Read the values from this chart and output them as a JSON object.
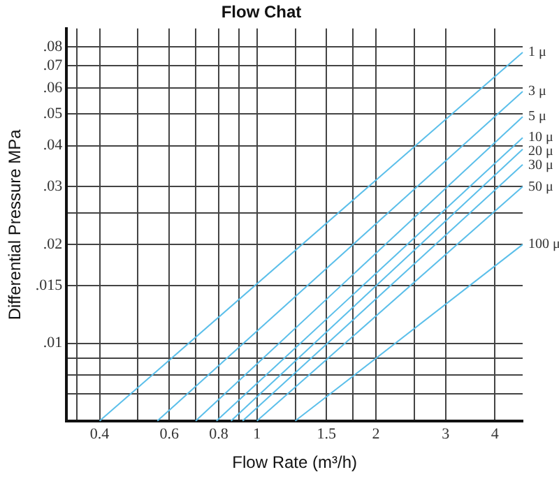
{
  "chart_data": {
    "type": "line",
    "title": "Flow Chat",
    "xlabel": "Flow Rate (m³/h)",
    "ylabel": "Differential Pressure MPa",
    "log": "xy",
    "grid": true,
    "legend": false,
    "marker": "none",
    "line_style": "solid",
    "xlim": [
      0.33,
      4.7
    ],
    "ylim": [
      0.0058,
      0.091
    ],
    "xticks": [
      {
        "value": 0.35,
        "label": null
      },
      0.4,
      {
        "value": 0.5,
        "label": null
      },
      0.6,
      {
        "value": 0.7,
        "label": null
      },
      0.8,
      {
        "value": 0.9,
        "label": null
      },
      1,
      {
        "value": 1.25,
        "label": null
      },
      1.5,
      {
        "value": 1.75,
        "label": null
      },
      2,
      {
        "value": 2.5,
        "label": null
      },
      3,
      4
    ],
    "yticks": [
      {
        "value": 0.007,
        "label": null
      },
      {
        "value": 0.008,
        "label": null
      },
      {
        "value": 0.009,
        "label": null
      },
      {
        "value": 0.01,
        "label": ".01"
      },
      {
        "value": 0.015,
        "label": ".015"
      },
      {
        "value": 0.02,
        "label": ".02"
      },
      {
        "value": 0.025,
        "label": null
      },
      {
        "value": 0.03,
        "label": ".03"
      },
      {
        "value": 0.04,
        "label": ".04"
      },
      {
        "value": 0.05,
        "label": ".05"
      },
      {
        "value": 0.06,
        "label": ".06"
      },
      {
        "value": 0.07,
        "label": ".07"
      },
      {
        "value": 0.08,
        "label": ".08"
      }
    ],
    "series": [
      {
        "name": "1 μ",
        "color": "#5bbfea",
        "x": [
          0.4,
          4.7
        ],
        "values": [
          0.0058,
          0.077
        ]
      },
      {
        "name": "3 μ",
        "color": "#5bbfea",
        "x": [
          0.56,
          4.7
        ],
        "values": [
          0.0058,
          0.0585
        ]
      },
      {
        "name": "5 μ",
        "color": "#5bbfea",
        "x": [
          0.7,
          4.7
        ],
        "values": [
          0.0058,
          0.049
        ]
      },
      {
        "name": "10 μ",
        "color": "#5bbfea",
        "x": [
          0.79,
          4.7
        ],
        "values": [
          0.0058,
          0.0423
        ]
      },
      {
        "name": "20 μ",
        "color": "#5bbfea",
        "x": [
          0.86,
          4.7
        ],
        "values": [
          0.0058,
          0.039
        ]
      },
      {
        "name": "30 μ",
        "color": "#5bbfea",
        "x": [
          0.92,
          4.7
        ],
        "values": [
          0.0058,
          0.035
        ]
      },
      {
        "name": "50 μ",
        "color": "#5bbfea",
        "x": [
          1.0,
          4.7
        ],
        "values": [
          0.0058,
          0.03
        ]
      },
      {
        "name": "100 μ",
        "color": "#5bbfea",
        "x": [
          1.25,
          4.7
        ],
        "values": [
          0.0058,
          0.02
        ]
      }
    ]
  }
}
